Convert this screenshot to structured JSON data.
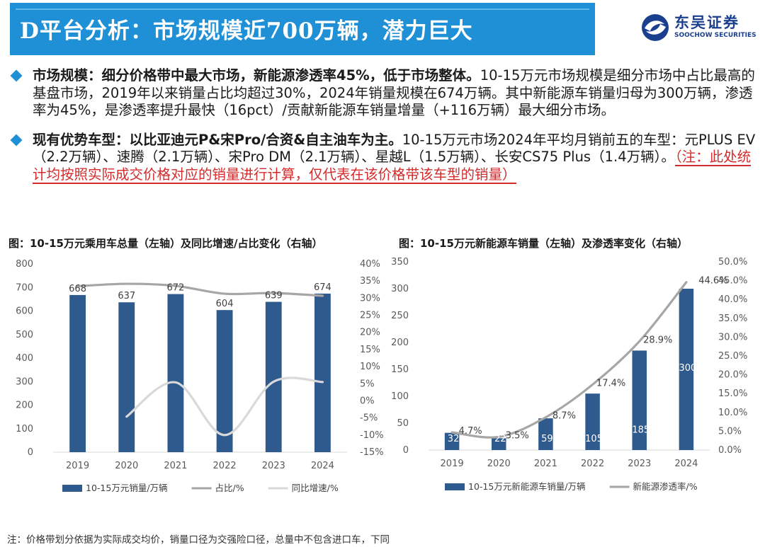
{
  "header": {
    "title": "D平台分析：市场规模近700万辆，潜力巨大",
    "logo_cn": "东吴证券",
    "logo_en": "SOOCHOW SECURITIES"
  },
  "bullets": [
    {
      "head": "市场规模：细分价格带中最大市场，新能源渗透率45%，低于市场整体。",
      "body": "10-15万元市场规模是细分市场中占比最高的基盘市场，2019年以来销量占比均超过30%，2024年销量规模在674万辆。其中新能源车销量归母为300万辆，渗透率为45%，是渗透率提升最快（16pct）/贡献新能源车销量增量（+116万辆）最大细分市场。",
      "note": ""
    },
    {
      "head": "现有优势车型：以比亚迪元P&宋Pro/合资&自主油车为主。",
      "body": "10-15万元市场2024年平均月销前五的车型：元PLUS EV（2.2万辆）、速腾（2.1万辆）、宋Pro DM（2.1万辆）、星越L（1.5万辆）、长安CS75 Plus（1.4万辆）。",
      "note": "（注：此处统计均按照实际成交价格对应的销量进行计算，仅代表在该价格带该车型的销量）"
    }
  ],
  "chart_data": [
    {
      "type": "bar",
      "title": "图：10-15万元乘用车总量（左轴）及同比增速/占比变化（右轴）",
      "categories": [
        "2019",
        "2020",
        "2021",
        "2022",
        "2023",
        "2024"
      ],
      "series": [
        {
          "name": "10-15万元销量/万辆",
          "type": "bar",
          "axis": "left",
          "values": [
            668,
            637,
            672,
            604,
            639,
            674
          ],
          "color": "#2e5a8e"
        },
        {
          "name": "占比/%",
          "type": "line",
          "axis": "right",
          "values": [
            33.5,
            34.2,
            33.6,
            31.3,
            31.5,
            30.7
          ],
          "color": "#a6a6a6"
        },
        {
          "name": "同比增速/%",
          "type": "line",
          "axis": "right",
          "values": [
            null,
            -4.6,
            5.4,
            -10.0,
            5.6,
            5.5
          ],
          "color": "#d9d9d9"
        }
      ],
      "data_labels": [
        "668",
        "637",
        "672",
        "604",
        "639",
        "674"
      ],
      "y_left": {
        "min": 0,
        "max": 800,
        "ticks": [
          "0",
          "100",
          "200",
          "300",
          "400",
          "500",
          "600",
          "700",
          "800"
        ]
      },
      "y_right": {
        "min": -15,
        "max": 40,
        "ticks": [
          "-15%",
          "-10%",
          "-5%",
          "0%",
          "5%",
          "10%",
          "15%",
          "20%",
          "25%",
          "30%",
          "35%",
          "40%"
        ]
      },
      "legend_position": "bottom",
      "grid": false
    },
    {
      "type": "bar",
      "title": "图：10-15万元新能源车销量（左轴）及渗透率变化（右轴）",
      "categories": [
        "2019",
        "2020",
        "2021",
        "2022",
        "2023",
        "2024"
      ],
      "series": [
        {
          "name": "10-15万元新能源车销量/万辆",
          "type": "bar",
          "axis": "left",
          "values": [
            32,
            22,
            59,
            105,
            185,
            300
          ],
          "color": "#2e5a8e"
        },
        {
          "name": "新能源渗透率/%",
          "type": "line",
          "axis": "right",
          "values": [
            4.7,
            3.5,
            8.7,
            17.4,
            28.9,
            44.6
          ],
          "color": "#a6a6a6"
        }
      ],
      "bar_labels": [
        "32",
        "22",
        "59",
        "105",
        "185",
        "300"
      ],
      "line_labels": [
        "4.7%",
        "3.5%",
        "8.7%",
        "17.4%",
        "28.9%",
        "44.6%"
      ],
      "y_left": {
        "min": 0,
        "max": 350,
        "ticks": [
          "0",
          "50",
          "100",
          "150",
          "200",
          "250",
          "300",
          "350"
        ]
      },
      "y_right": {
        "min": 0,
        "max": 50,
        "ticks": [
          "0.0%",
          "5.0%",
          "10.0%",
          "15.0%",
          "20.0%",
          "25.0%",
          "30.0%",
          "35.0%",
          "40.0%",
          "45.0%",
          "50.0%"
        ]
      },
      "legend_position": "bottom",
      "grid": false
    }
  ],
  "footnote": "注：价格带划分依据为实际成交均价，销量口径为交强险口径，总量中不包含进口车，下同"
}
